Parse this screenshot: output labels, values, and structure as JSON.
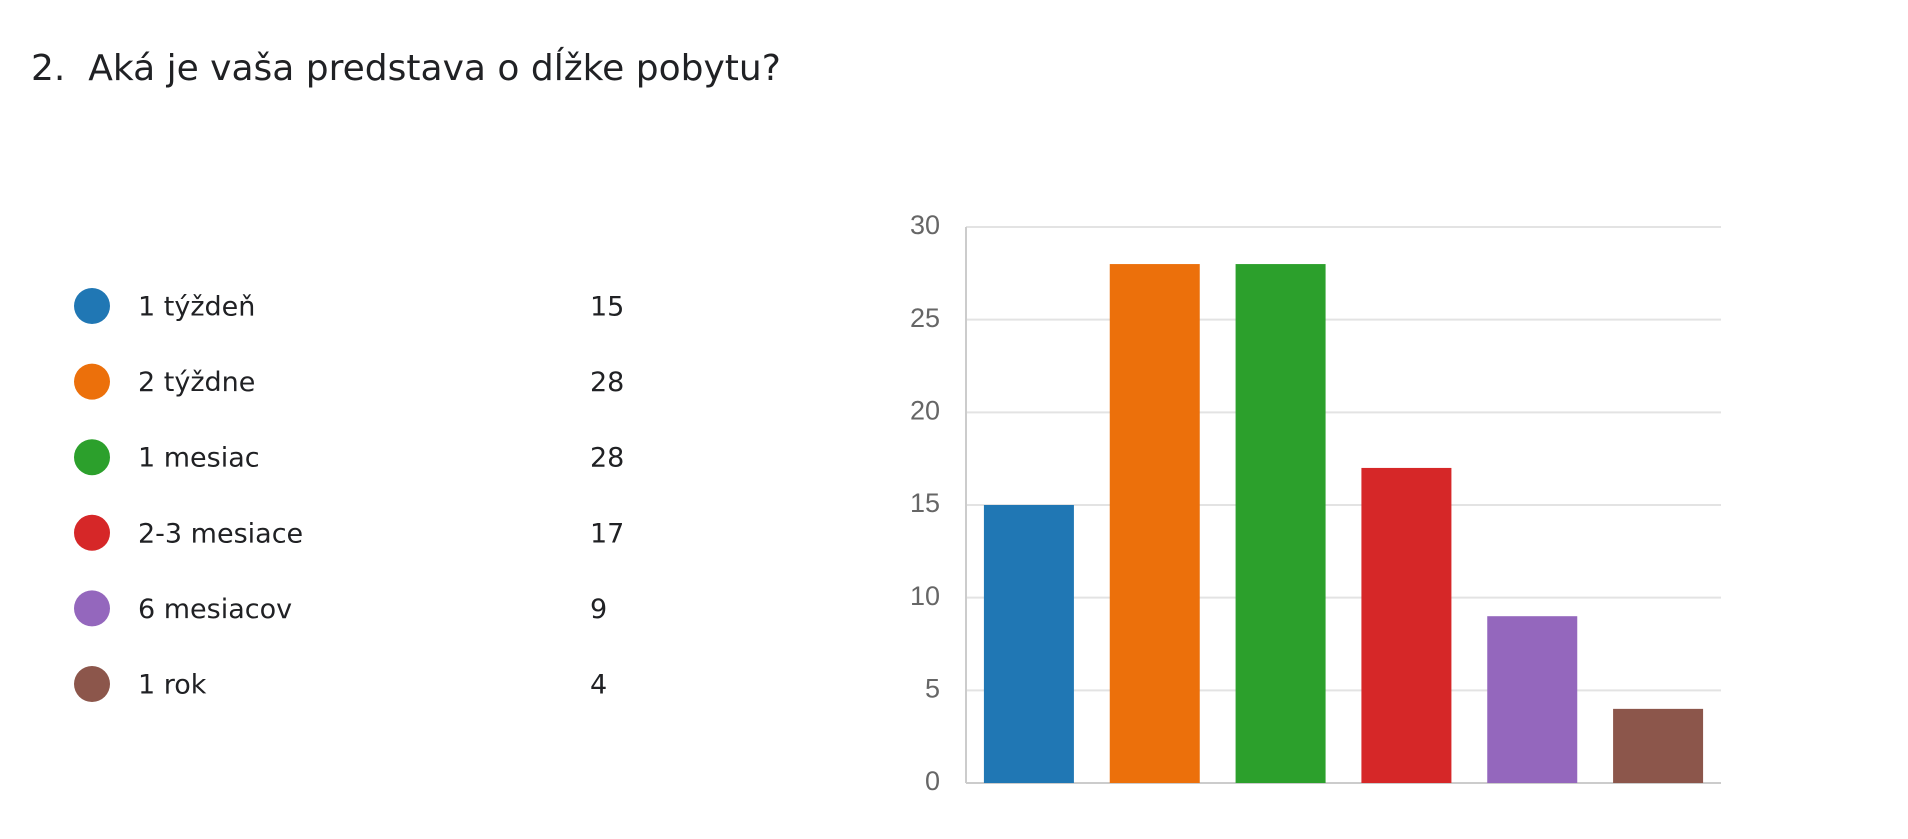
{
  "chart_data": {
    "type": "bar",
    "title": "2.  Aká je vaša predstava o dĺžke pobytu?",
    "categories": [
      "1 týždeň",
      "2 týždne",
      "1 mesiac",
      "2-3 mesiace",
      "6 mesiacov",
      "1 rok"
    ],
    "values": [
      15,
      28,
      28,
      17,
      9,
      4
    ],
    "colors": [
      "#2077b4",
      "#ec700b",
      "#2ca02c",
      "#d62728",
      "#9467bd",
      "#8c564b"
    ],
    "ylim": [
      0,
      30
    ],
    "yticks": [
      0,
      5,
      10,
      15,
      20,
      25,
      30
    ],
    "grid": true,
    "legend": "left"
  }
}
